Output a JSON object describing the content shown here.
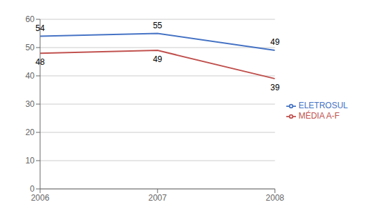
{
  "chart_data": {
    "type": "line",
    "x": [
      2006,
      2007,
      2008
    ],
    "series": [
      {
        "name": "ELETROSUL",
        "color": "#4472C4",
        "values": [
          54,
          55,
          49
        ]
      },
      {
        "name": "MÉDIA A-F",
        "color": "#C0504D",
        "values": [
          48,
          49,
          39
        ]
      }
    ],
    "xlim": [
      2006,
      2008
    ],
    "xticks": [
      2006,
      2007,
      2008
    ],
    "ylim": [
      0,
      60
    ],
    "yticks": [
      0,
      10,
      20,
      30,
      40,
      50,
      60
    ],
    "grid": true,
    "legend": "right",
    "data_labels": true
  }
}
